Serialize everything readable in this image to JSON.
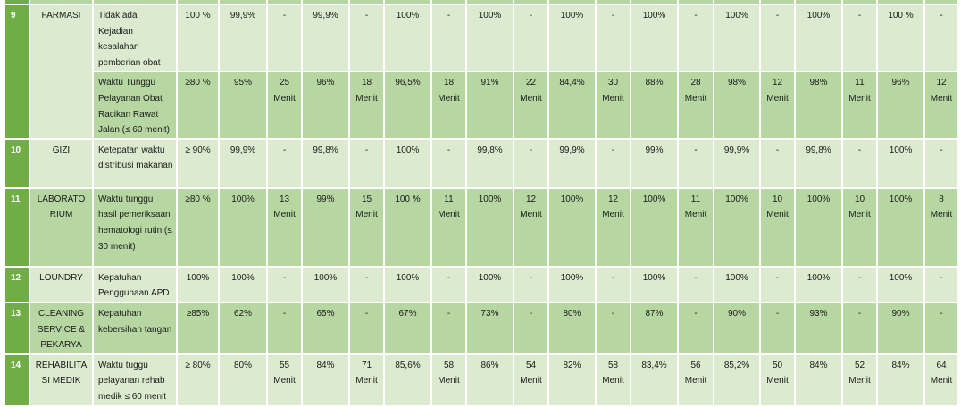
{
  "colors": {
    "dark_green": "#70ad47",
    "mid_green": "#b7d7a2",
    "light_green": "#dceacf"
  },
  "rows": [
    {
      "no": "9",
      "unit": "FARMASI",
      "indicator": "Tidak ada Kejadian kesalahan pemberian obat",
      "target": "100 %",
      "values": [
        "99,9%",
        "-",
        "99,9%",
        "-",
        "100%",
        "-",
        "100%",
        "-",
        "100%",
        "-",
        "100%",
        "-",
        "100%",
        "-",
        "100%",
        "-",
        "100 %",
        "-"
      ],
      "shade": "light"
    },
    {
      "no": "",
      "unit": "",
      "indicator": "Waktu Tunggu Pelayanan Obat Racikan Rawat Jalan (≤ 60 menit)",
      "target": "≥80 %",
      "values": [
        "95%",
        "25 Menit",
        "96%",
        "18 Menit",
        "96,5%",
        "18 Menit",
        "91%",
        "22 Menit",
        "84,4%",
        "30 Menit",
        "88%",
        "28 Menit",
        "98%",
        "12 Menit",
        "98%",
        "11 Menit",
        "96%",
        "12 Menit"
      ],
      "shade": "mid"
    },
    {
      "no": "10",
      "unit": "GIZI",
      "indicator": "Ketepatan waktu distribusi makanan",
      "target": "≥ 90%",
      "values": [
        "99,9%",
        "-",
        "99,8%",
        "-",
        "100%",
        "-",
        "99,8%",
        "-",
        "99,9%",
        "-",
        "99%",
        "-",
        "99,9%",
        "-",
        "99,8%",
        "-",
        "100%",
        "-"
      ],
      "shade": "light"
    },
    {
      "no": "11",
      "unit": "LABORATO RIUM",
      "indicator": "Waktu tunggu hasil pemeriksaan hematologi rutin (≤ 30 menit)",
      "target": "≥80 %",
      "values": [
        "100%",
        "13 Menit",
        "99%",
        "15 Menit",
        "100 %",
        "11 Menit",
        "100%",
        "12 Menit",
        "100%",
        "12 Menit",
        "100%",
        "11 Menit",
        "100%",
        "10 Menit",
        "100%",
        "10 Menit",
        "100%",
        "8 Menit"
      ],
      "shade": "mid"
    },
    {
      "no": "12",
      "unit": "LOUNDRY",
      "indicator": "Kepatuhan Penggunaan APD",
      "target": "100%",
      "values": [
        "100%",
        "-",
        "100%",
        "-",
        "100%",
        "-",
        "100%",
        "-",
        "100%",
        "-",
        "100%",
        "-",
        "100%",
        "-",
        "100%",
        "-",
        "100%",
        "-"
      ],
      "shade": "light"
    },
    {
      "no": "13",
      "unit": "CLEANING SERVICE & PEKARYA",
      "indicator": "Kepatuhan kebersihan tangan",
      "target": "≥85%",
      "values": [
        "62%",
        "-",
        "65%",
        "-",
        "67%",
        "-",
        "73%",
        "-",
        "80%",
        "-",
        "87%",
        "-",
        "90%",
        "-",
        "93%",
        "-",
        "90%",
        "-"
      ],
      "shade": "mid"
    },
    {
      "no": "14",
      "unit": "REHABILITA SI MEDIK",
      "indicator": "Waktu tuggu pelayanan rehab medik ≤ 60 menit",
      "target": "≥ 80%",
      "values": [
        "80%",
        "55 Menit",
        "84%",
        "71 Menit",
        "85,6%",
        "58 Menit",
        "86%",
        "54 Menit",
        "82%",
        "58 Menit",
        "83,4%",
        "56 Menit",
        "85,2%",
        "50 Menit",
        "84%",
        "52 Menit",
        "84%",
        "64 Menit"
      ],
      "shade": "light"
    }
  ]
}
